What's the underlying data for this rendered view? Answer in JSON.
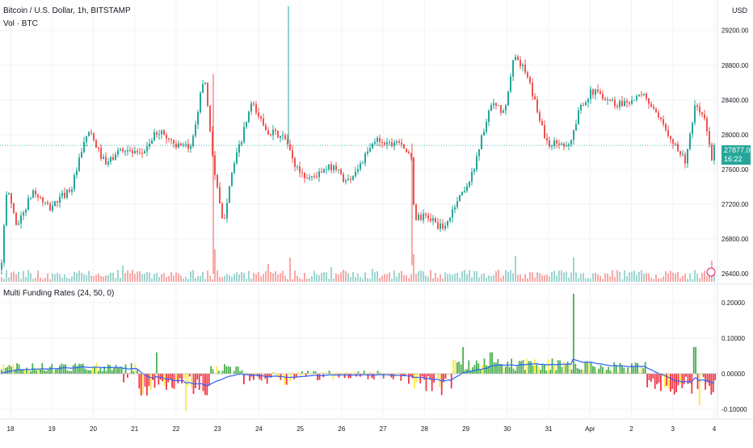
{
  "header": {
    "symbol_title": "Bitcoin / U.S. Dollar, 1h, BITSTAMP",
    "volume_label": "Vol · BTC",
    "indicator_title": "Multi Funding Rates (24, 50, 0)",
    "currency": "USD"
  },
  "last_price": {
    "value": "27877.00",
    "countdown": "16:22"
  },
  "colors": {
    "up": "#26a69a",
    "down": "#ef5350",
    "vol_up": "#9fd6cf",
    "vol_down": "#f7a9a7",
    "fund_pos": "#4caf50",
    "fund_neg": "#f23645",
    "fund_neutral": "#ffeb3b",
    "avg_line": "#2962ff",
    "grid": "#f0f3fa"
  },
  "chart_data": [
    {
      "type": "candlestick",
      "title": "Bitcoin / U.S. Dollar, 1h, BITSTAMP",
      "interval": "1h",
      "x_ticks": [
        "18",
        "19",
        "20",
        "21",
        "22",
        "23",
        "24",
        "25",
        "26",
        "27",
        "28",
        "29",
        "30",
        "31",
        "Apr",
        "2",
        "3",
        "4"
      ],
      "y_ticks": [
        "26400.00",
        "26800.00",
        "27200.00",
        "27600.00",
        "28000.00",
        "28400.00",
        "28800.00",
        "29200.00"
      ],
      "ylim": [
        26300,
        29550
      ],
      "anchors": [
        [
          0,
          26450
        ],
        [
          8,
          27400
        ],
        [
          20,
          26950
        ],
        [
          40,
          27350
        ],
        [
          60,
          27150
        ],
        [
          88,
          27400
        ],
        [
          108,
          28050
        ],
        [
          130,
          27650
        ],
        [
          150,
          27850
        ],
        [
          172,
          27750
        ],
        [
          195,
          28050
        ],
        [
          222,
          27850
        ],
        [
          235,
          27850
        ],
        [
          252,
          28700
        ],
        [
          264,
          27600
        ],
        [
          275,
          26950
        ],
        [
          284,
          27500
        ],
        [
          298,
          27950
        ],
        [
          310,
          28350
        ],
        [
          330,
          28050
        ],
        [
          352,
          27950
        ],
        [
          364,
          27650
        ],
        [
          378,
          27500
        ],
        [
          395,
          27550
        ],
        [
          412,
          27650
        ],
        [
          428,
          27450
        ],
        [
          448,
          27700
        ],
        [
          465,
          27950
        ],
        [
          480,
          27900
        ],
        [
          494,
          27950
        ],
        [
          508,
          27700
        ],
        [
          512,
          27050
        ],
        [
          530,
          27050
        ],
        [
          548,
          26900
        ],
        [
          565,
          27250
        ],
        [
          582,
          27500
        ],
        [
          596,
          28000
        ],
        [
          608,
          28350
        ],
        [
          624,
          28250
        ],
        [
          636,
          28950
        ],
        [
          650,
          28700
        ],
        [
          662,
          28350
        ],
        [
          676,
          27900
        ],
        [
          694,
          27900
        ],
        [
          705,
          27900
        ],
        [
          718,
          28350
        ],
        [
          732,
          28500
        ],
        [
          746,
          28450
        ],
        [
          762,
          28350
        ],
        [
          780,
          28400
        ],
        [
          798,
          28450
        ],
        [
          812,
          28200
        ],
        [
          828,
          28000
        ],
        [
          840,
          27800
        ],
        [
          848,
          27700
        ],
        [
          860,
          28350
        ],
        [
          872,
          28150
        ],
        [
          880,
          27700
        ],
        [
          885,
          27877
        ]
      ],
      "last_price": 27877
    },
    {
      "type": "bar",
      "title": "Vol · BTC",
      "series": [
        {
          "values": "per-candle volume, spikes near 22, 24, 27, 30, Apr 1, 4"
        }
      ]
    },
    {
      "type": "bar",
      "title": "Multi Funding Rates (24, 50, 0)",
      "y_ticks": [
        "0.20000",
        "0.10000",
        "0.00000",
        "-0.10000"
      ],
      "ylim": [
        -0.125,
        0.245
      ],
      "segments": [
        {
          "from": 0,
          "to": 150,
          "mean": 0.018,
          "spread": 0.012
        },
        {
          "from": 150,
          "to": 170,
          "mean": 0.0,
          "spread": 0.03
        },
        {
          "from": 170,
          "to": 260,
          "mean": -0.035,
          "spread": 0.03
        },
        {
          "from": 260,
          "to": 300,
          "mean": 0.012,
          "spread": 0.015
        },
        {
          "from": 300,
          "to": 360,
          "mean": -0.015,
          "spread": 0.02
        },
        {
          "from": 360,
          "to": 500,
          "mean": -0.005,
          "spread": 0.015
        },
        {
          "from": 500,
          "to": 560,
          "mean": -0.025,
          "spread": 0.025
        },
        {
          "from": 560,
          "to": 700,
          "mean": 0.025,
          "spread": 0.018
        },
        {
          "from": 700,
          "to": 800,
          "mean": 0.02,
          "spread": 0.015
        },
        {
          "from": 800,
          "to": 888,
          "mean": -0.03,
          "spread": 0.03
        }
      ],
      "spikes": [
        [
          710,
          0.225
        ],
        [
          193,
          0.06
        ],
        [
          572,
          0.075
        ],
        [
          607,
          0.06
        ],
        [
          859,
          0.075
        ],
        [
          865,
          -0.09
        ],
        [
          228,
          -0.105
        ],
        [
          545,
          -0.06
        ]
      ],
      "avg_line_name": "average"
    }
  ]
}
